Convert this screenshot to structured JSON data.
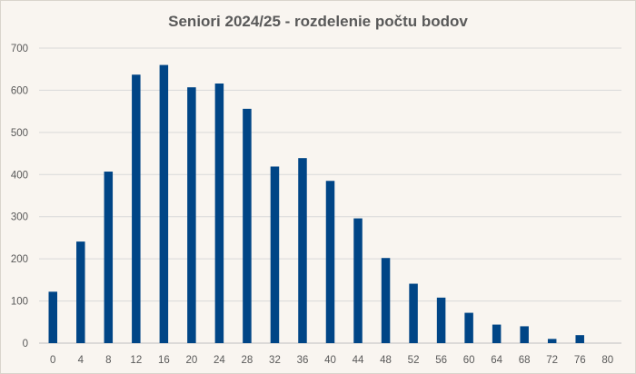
{
  "chart_data": {
    "type": "bar",
    "title": "Seniori 2024/25 - rozdelenie počtu bodov",
    "xlabel": "",
    "ylabel": "",
    "categories": [
      "0",
      "4",
      "8",
      "12",
      "16",
      "20",
      "24",
      "28",
      "32",
      "36",
      "40",
      "44",
      "48",
      "52",
      "56",
      "60",
      "64",
      "68",
      "72",
      "76",
      "80"
    ],
    "values": [
      122,
      241,
      407,
      637,
      660,
      607,
      616,
      556,
      419,
      439,
      385,
      296,
      202,
      141,
      108,
      72,
      44,
      40,
      10,
      19,
      0
    ],
    "ylim": [
      0,
      700
    ],
    "yticks": [
      "0",
      "100",
      "200",
      "300",
      "400",
      "500",
      "600",
      "700"
    ],
    "grid": true,
    "legend": "none",
    "colors": {
      "bar": "#004586",
      "grid": "#d9d9d9",
      "background": "#f9f5f0",
      "text": "#595959"
    }
  }
}
